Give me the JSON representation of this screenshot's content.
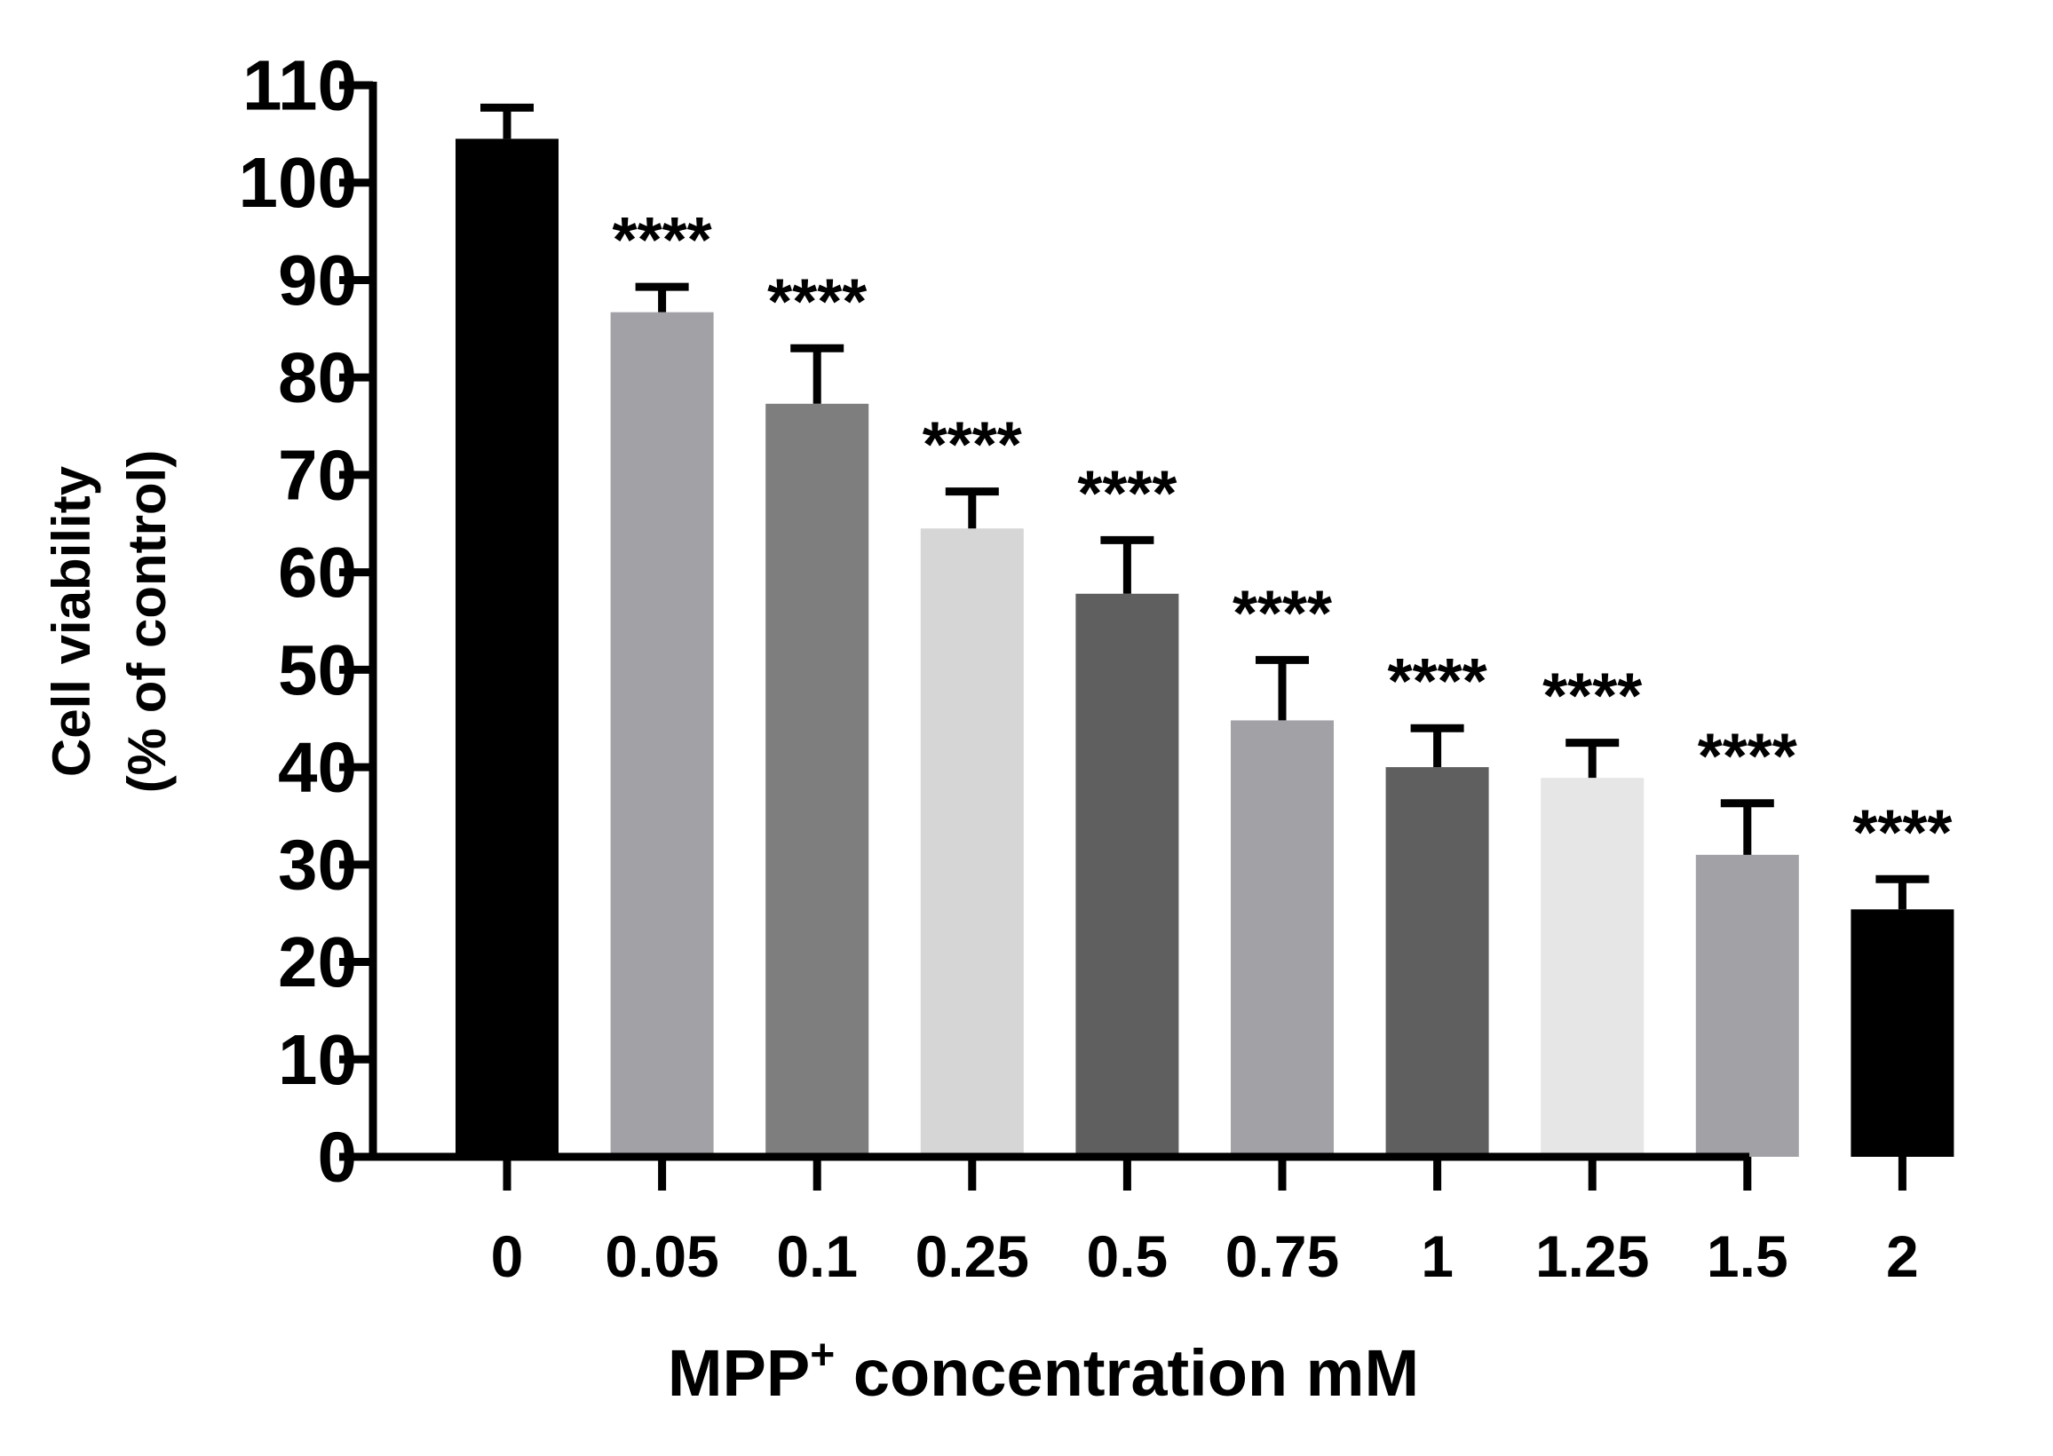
{
  "chart_data": {
    "type": "bar",
    "title": "",
    "xlabel_main": "MPP",
    "xlabel_sup": "+",
    "xlabel_rest": " concentration mM",
    "ylabel_line1": "Cell viability",
    "ylabel_line2": "(% of control)",
    "ylim": [
      0,
      110
    ],
    "yticks": [
      0,
      10,
      20,
      30,
      40,
      50,
      60,
      70,
      80,
      90,
      100,
      110
    ],
    "categories": [
      "0",
      "0.05",
      "0.1",
      "0.25",
      "0.5",
      "0.75",
      "1",
      "1.25",
      "1.5",
      "2"
    ],
    "values": [
      104.5,
      86.7,
      77.3,
      64.5,
      57.8,
      44.8,
      40,
      38.9,
      31,
      25.4
    ],
    "errors": [
      3.2,
      2.6,
      5.7,
      3.8,
      5.5,
      6.2,
      4,
      3.6,
      5.3,
      3.1
    ],
    "significance": [
      "",
      "****",
      "****",
      "****",
      "****",
      "****",
      "****",
      "****",
      "****",
      "****"
    ],
    "colors": [
      "#000000",
      "#a2a1a6",
      "#7e7e7e",
      "#d6d6d6",
      "#5f5f5f",
      "#a2a1a6",
      "#5f5f5f",
      "#e6e6e6",
      "#a2a1a6",
      "#000000"
    ]
  }
}
